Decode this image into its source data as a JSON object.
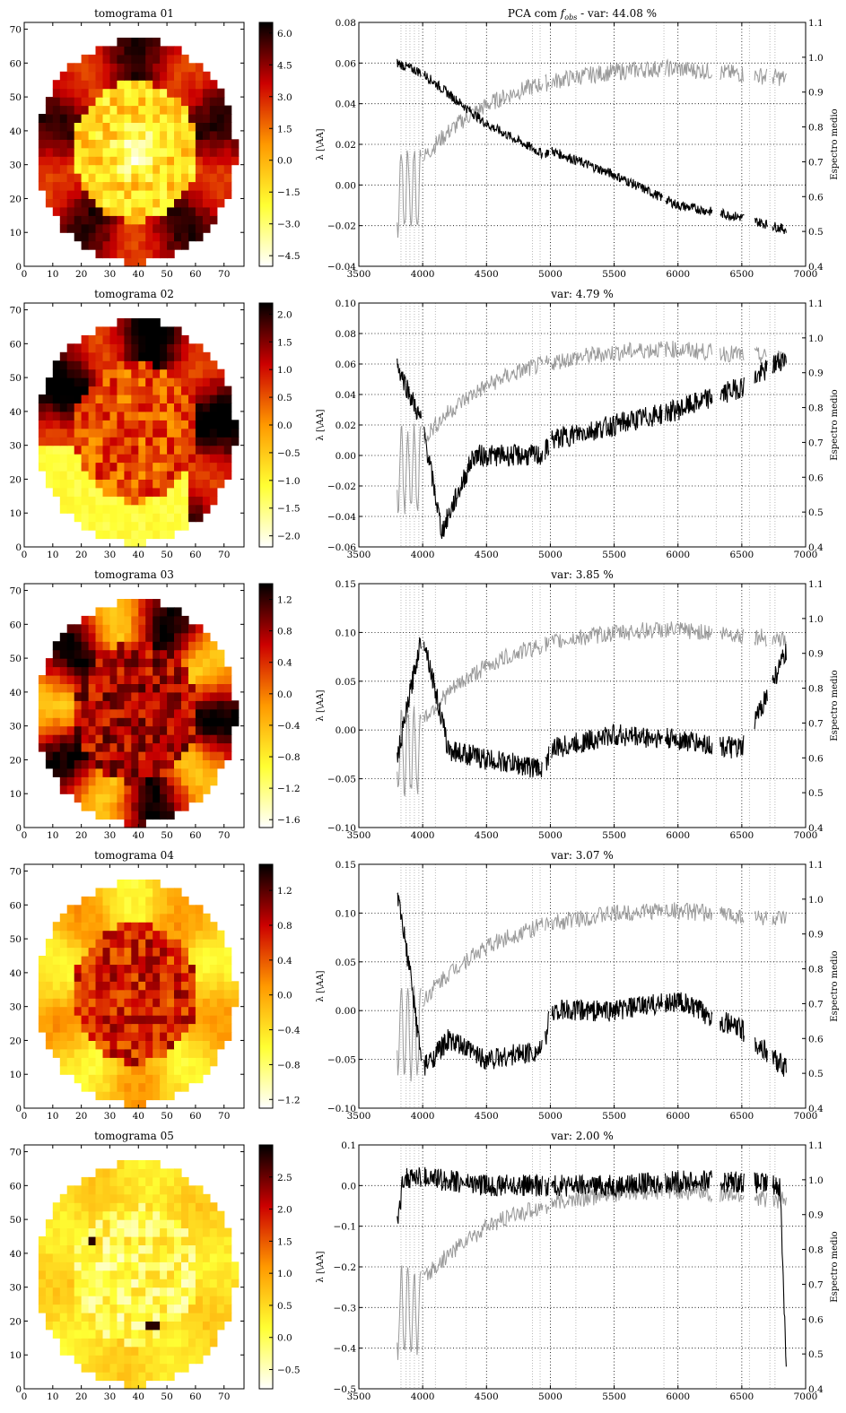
{
  "figure": {
    "tomo_xticks": [
      0,
      10,
      20,
      30,
      40,
      50,
      60,
      70
    ],
    "tomo_yticks": [
      0,
      10,
      20,
      30,
      40,
      50,
      60,
      70
    ],
    "tomo_xlim": [
      0,
      77
    ],
    "tomo_ylim": [
      0,
      72
    ],
    "spec_xticks": [
      3500,
      4000,
      4500,
      5000,
      5500,
      6000,
      6500,
      7000
    ],
    "spec_xlim": [
      3500,
      7000
    ],
    "spec_ylabel": "λ [\\AA]",
    "mean_ylabel": "Espectro medio",
    "mean_yticks": [
      0.4,
      0.5,
      0.6,
      0.7,
      0.8,
      0.9,
      1.0,
      1.1
    ],
    "mean_ylim": [
      0.4,
      1.1
    ],
    "colors": {
      "eigen": "#000000",
      "mean": "#999999",
      "grid": "#000000"
    }
  },
  "rows": [
    {
      "tomo_title": "tomograma 01",
      "colorbar_ticks": [
        "6.0",
        "4.5",
        "3.0",
        "1.5",
        "0.0",
        "−1.5",
        "−3.0",
        "−4.5"
      ],
      "cbar_range": [
        -5,
        6.5
      ],
      "spec_title_main": "PCA com ",
      "spec_title_sym": "f",
      "spec_title_sub": "obs",
      "spec_title_rest": " - var: 44.08 %",
      "spec_yticks": [
        "0.08",
        "0.06",
        "0.04",
        "0.02",
        "0.00",
        "−0.02",
        "−0.04"
      ],
      "spec_ylim": [
        -0.04,
        0.08
      ]
    },
    {
      "tomo_title": "tomograma 02",
      "colorbar_ticks": [
        "2.0",
        "1.5",
        "1.0",
        "0.5",
        "0.0",
        "−0.5",
        "−1.0",
        "−1.5",
        "−2.0"
      ],
      "cbar_range": [
        -2.2,
        2.2
      ],
      "spec_title_main": "var: 4.79 %",
      "spec_yticks": [
        "0.10",
        "0.08",
        "0.06",
        "0.04",
        "0.02",
        "0.00",
        "−0.02",
        "−0.04",
        "−0.06"
      ],
      "spec_ylim": [
        -0.06,
        0.1
      ]
    },
    {
      "tomo_title": "tomograma 03",
      "colorbar_ticks": [
        "1.2",
        "0.8",
        "0.4",
        "0.0",
        "−0.4",
        "−0.8",
        "−1.2",
        "−1.6"
      ],
      "cbar_range": [
        -1.7,
        1.4
      ],
      "spec_title_main": "var: 3.85 %",
      "spec_yticks": [
        "0.15",
        "0.10",
        "0.05",
        "0.00",
        "−0.05",
        "−0.10"
      ],
      "spec_ylim": [
        -0.1,
        0.15
      ]
    },
    {
      "tomo_title": "tomograma 04",
      "colorbar_ticks": [
        "1.2",
        "0.8",
        "0.4",
        "0.0",
        "−0.4",
        "−0.8",
        "−1.2"
      ],
      "cbar_range": [
        -1.3,
        1.5
      ],
      "spec_title_main": "var: 3.07 %",
      "spec_yticks": [
        "0.15",
        "0.10",
        "0.05",
        "0.00",
        "−0.05",
        "−0.10"
      ],
      "spec_ylim": [
        -0.1,
        0.15
      ]
    },
    {
      "tomo_title": "tomograma 05",
      "colorbar_ticks": [
        "2.5",
        "2.0",
        "1.5",
        "1.0",
        "0.5",
        "0.0",
        "−0.5"
      ],
      "cbar_range": [
        -0.8,
        3.0
      ],
      "spec_title_main": "var: 2.00 %",
      "spec_yticks": [
        "0.1",
        "0.0",
        "−0.1",
        "−0.2",
        "−0.3",
        "−0.4",
        "−0.5"
      ],
      "spec_ylim": [
        -0.5,
        0.1
      ]
    }
  ],
  "chart_data": [
    {
      "type": "heatmap",
      "title": "tomograma 01",
      "xlim": [
        0,
        77
      ],
      "ylim": [
        0,
        72
      ],
      "colorbar_range": [
        -4.5,
        6.0
      ],
      "colormap": "hot_r"
    },
    {
      "type": "line",
      "title": "PCA com f_obs - var: 44.08 %",
      "xlim": [
        3500,
        7000
      ],
      "ylim": [
        -0.04,
        0.08
      ],
      "y2lim": [
        0.4,
        1.1
      ],
      "ylabel": "λ [\\AA]",
      "y2label": "Espectro medio",
      "series": [
        {
          "points": [
            [
              3800,
              0.06
            ],
            [
              4000,
              0.055
            ],
            [
              4200,
              0.045
            ],
            [
              4500,
              0.03
            ],
            [
              4950,
              0.015
            ],
            [
              5000,
              0.017
            ],
            [
              5500,
              0.005
            ],
            [
              6000,
              -0.01
            ],
            [
              6500,
              -0.016
            ],
            [
              6850,
              -0.022
            ]
          ]
        }
      ]
    },
    {
      "type": "heatmap",
      "title": "tomograma 02",
      "xlim": [
        0,
        77
      ],
      "ylim": [
        0,
        72
      ],
      "colorbar_range": [
        -2.0,
        2.0
      ],
      "colormap": "hot_r"
    },
    {
      "type": "line",
      "title": "var: 4.79 %",
      "xlim": [
        3500,
        7000
      ],
      "ylim": [
        -0.06,
        0.1
      ],
      "y2lim": [
        0.4,
        1.1
      ],
      "series": [
        {
          "points": [
            [
              3800,
              0.06
            ],
            [
              4000,
              0.02
            ],
            [
              4150,
              -0.05
            ],
            [
              4400,
              0.0
            ],
            [
              4950,
              0.0
            ],
            [
              5000,
              0.01
            ],
            [
              5500,
              0.02
            ],
            [
              6000,
              0.03
            ],
            [
              6500,
              0.045
            ],
            [
              6850,
              0.065
            ]
          ]
        }
      ]
    },
    {
      "type": "heatmap",
      "title": "tomograma 03",
      "xlim": [
        0,
        77
      ],
      "ylim": [
        0,
        72
      ],
      "colorbar_range": [
        -1.6,
        1.2
      ],
      "colormap": "hot_r"
    },
    {
      "type": "line",
      "title": "var: 3.85 %",
      "xlim": [
        3500,
        7000
      ],
      "ylim": [
        -0.1,
        0.15
      ],
      "y2lim": [
        0.4,
        1.1
      ],
      "series": [
        {
          "points": [
            [
              3800,
              -0.03
            ],
            [
              3950,
              0.07
            ],
            [
              4000,
              0.1
            ],
            [
              4200,
              -0.02
            ],
            [
              4500,
              -0.03
            ],
            [
              4950,
              -0.04
            ],
            [
              5000,
              -0.02
            ],
            [
              5500,
              -0.005
            ],
            [
              6000,
              -0.01
            ],
            [
              6500,
              -0.02
            ],
            [
              6850,
              0.08
            ]
          ]
        }
      ]
    },
    {
      "type": "heatmap",
      "title": "tomograma 04",
      "xlim": [
        0,
        77
      ],
      "ylim": [
        0,
        72
      ],
      "colorbar_range": [
        -1.2,
        1.2
      ],
      "colormap": "hot_r"
    },
    {
      "type": "line",
      "title": "var: 3.07 %",
      "xlim": [
        3500,
        7000
      ],
      "ylim": [
        -0.1,
        0.15
      ],
      "y2lim": [
        0.4,
        1.1
      ],
      "series": [
        {
          "points": [
            [
              3800,
              0.12
            ],
            [
              3900,
              0.04
            ],
            [
              4000,
              -0.06
            ],
            [
              4200,
              -0.03
            ],
            [
              4500,
              -0.05
            ],
            [
              4950,
              -0.04
            ],
            [
              5000,
              0.0
            ],
            [
              5500,
              0.0
            ],
            [
              6000,
              0.01
            ],
            [
              6500,
              -0.02
            ],
            [
              6850,
              -0.06
            ]
          ]
        }
      ]
    },
    {
      "type": "heatmap",
      "title": "tomograma 05",
      "xlim": [
        0,
        77
      ],
      "ylim": [
        0,
        72
      ],
      "colorbar_range": [
        -0.5,
        2.5
      ],
      "colormap": "hot_r"
    },
    {
      "type": "line",
      "title": "var: 2.00 %",
      "xlim": [
        3500,
        7000
      ],
      "ylim": [
        -0.5,
        0.1
      ],
      "y2lim": [
        0.4,
        1.1
      ],
      "series": [
        {
          "points": [
            [
              3800,
              -0.1
            ],
            [
              3850,
              0.02
            ],
            [
              4000,
              0.02
            ],
            [
              4500,
              0.0
            ],
            [
              4950,
              0.0
            ],
            [
              5000,
              0.0
            ],
            [
              5500,
              0.0
            ],
            [
              6000,
              0.01
            ],
            [
              6500,
              0.01
            ],
            [
              6800,
              0.0
            ],
            [
              6850,
              -0.46
            ]
          ]
        }
      ]
    }
  ]
}
